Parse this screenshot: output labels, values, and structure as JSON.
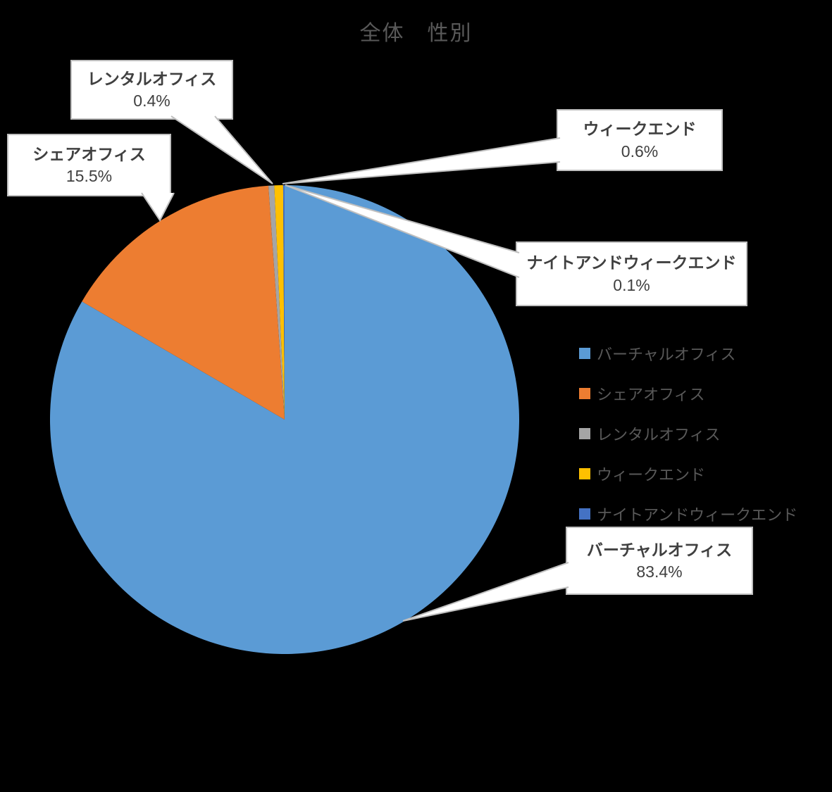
{
  "title": "全体　性別",
  "chart_data": {
    "type": "pie",
    "title": "全体　性別",
    "direction": "clockwise",
    "start_angle_deg": 0,
    "legend_position": "right",
    "series": [
      {
        "name": "バーチャルオフィス",
        "value_pct": 83.4,
        "color": "#5B9BD5"
      },
      {
        "name": "シェアオフィス",
        "value_pct": 15.5,
        "color": "#ED7D31"
      },
      {
        "name": "レンタルオフィス",
        "value_pct": 0.4,
        "color": "#A5A5A5"
      },
      {
        "name": "ウィークエンド",
        "value_pct": 0.6,
        "color": "#FFC000"
      },
      {
        "name": "ナイトアンドウィークエンド",
        "value_pct": 0.1,
        "color": "#4472C4"
      }
    ]
  },
  "callouts": [
    {
      "label": "レンタルオフィス",
      "value": "0.4%"
    },
    {
      "label": "シェアオフィス",
      "value": "15.5%"
    },
    {
      "label": "ウィークエンド",
      "value": "0.6%"
    },
    {
      "label": "ナイトアンドウィークエンド",
      "value": "0.1%"
    },
    {
      "label": "バーチャルオフィス",
      "value": "83.4%"
    }
  ],
  "colors": {
    "background": "#000000",
    "title_text": "#595959",
    "legend_text": "#595959",
    "callout_text": "#404040",
    "callout_border": "#BFBFBF",
    "callout_bg": "#FFFFFF"
  }
}
